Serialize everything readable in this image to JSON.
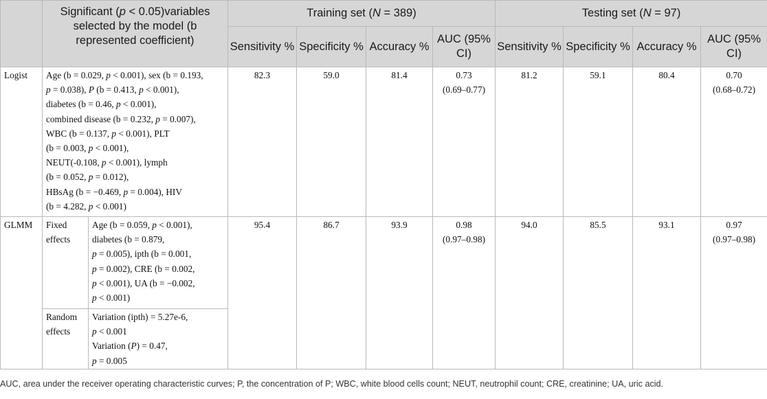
{
  "header": {
    "significant_label": "Significant (p < 0.05)variables selected by the model (b represented coefficient)",
    "training_label": "Training set (N = 389)",
    "testing_label": "Testing set (N = 97)",
    "columns": [
      "Sensitivity %",
      "Specificity %",
      "Accuracy %",
      "AUC (95% CI)"
    ]
  },
  "rows": {
    "logist": {
      "model": "Logist",
      "variables": [
        "Age (b = 0.029, p < 0.001), sex (b = 0.193,",
        "p = 0.038), P (b = 0.413, p < 0.001),",
        "diabetes (b = 0.46, p < 0.001),",
        "combined disease (b = 0.232, p = 0.007),",
        "WBC (b = 0.137, p < 0.001), PLT",
        "(b = 0.003, p < 0.001),",
        "NEUT(-0.108, p < 0.001), lymph",
        "(b = 0.052, p = 0.012),",
        "HBsAg (b = −0.469, p = 0.004), HIV",
        "(b = 4.282, p < 0.001)"
      ],
      "train": {
        "sensitivity": "82.3",
        "specificity": "59.0",
        "accuracy": "81.4",
        "auc": "0.73",
        "ci": "(0.69–0.77)"
      },
      "test": {
        "sensitivity": "81.2",
        "specificity": "59.1",
        "accuracy": "80.4",
        "auc": "0.70",
        "ci": "(0.68–0.72)"
      }
    },
    "glmm": {
      "model": "GLMM",
      "fixed_label": "Fixed effects",
      "fixed_variables": [
        "Age (b = 0.059, p < 0.001),",
        "diabetes (b = 0.879,",
        "p = 0.005), ipth (b = 0.001,",
        "p = 0.002), CRE (b = 0.002,",
        "p < 0.001), UA (b = −0.002,",
        "p < 0.001)"
      ],
      "random_label": "Random effects",
      "random_variables": [
        "Variation (ipth) = 5.27e-6,",
        "p < 0.001",
        "Variation (P) = 0.47,",
        "p = 0.005"
      ],
      "train": {
        "sensitivity": "95.4",
        "specificity": "86.7",
        "accuracy": "93.9",
        "auc": "0.98",
        "ci": "(0.97–0.98)"
      },
      "test": {
        "sensitivity": "94.0",
        "specificity": "85.5",
        "accuracy": "93.1",
        "auc": "0.97",
        "ci": "(0.97–0.98)"
      }
    }
  },
  "footnote": "AUC, area under the receiver operating characteristic curves; P, the concentration of P; WBC, white blood cells count; NEUT, neutrophil count; CRE, creatinine; UA, uric acid."
}
